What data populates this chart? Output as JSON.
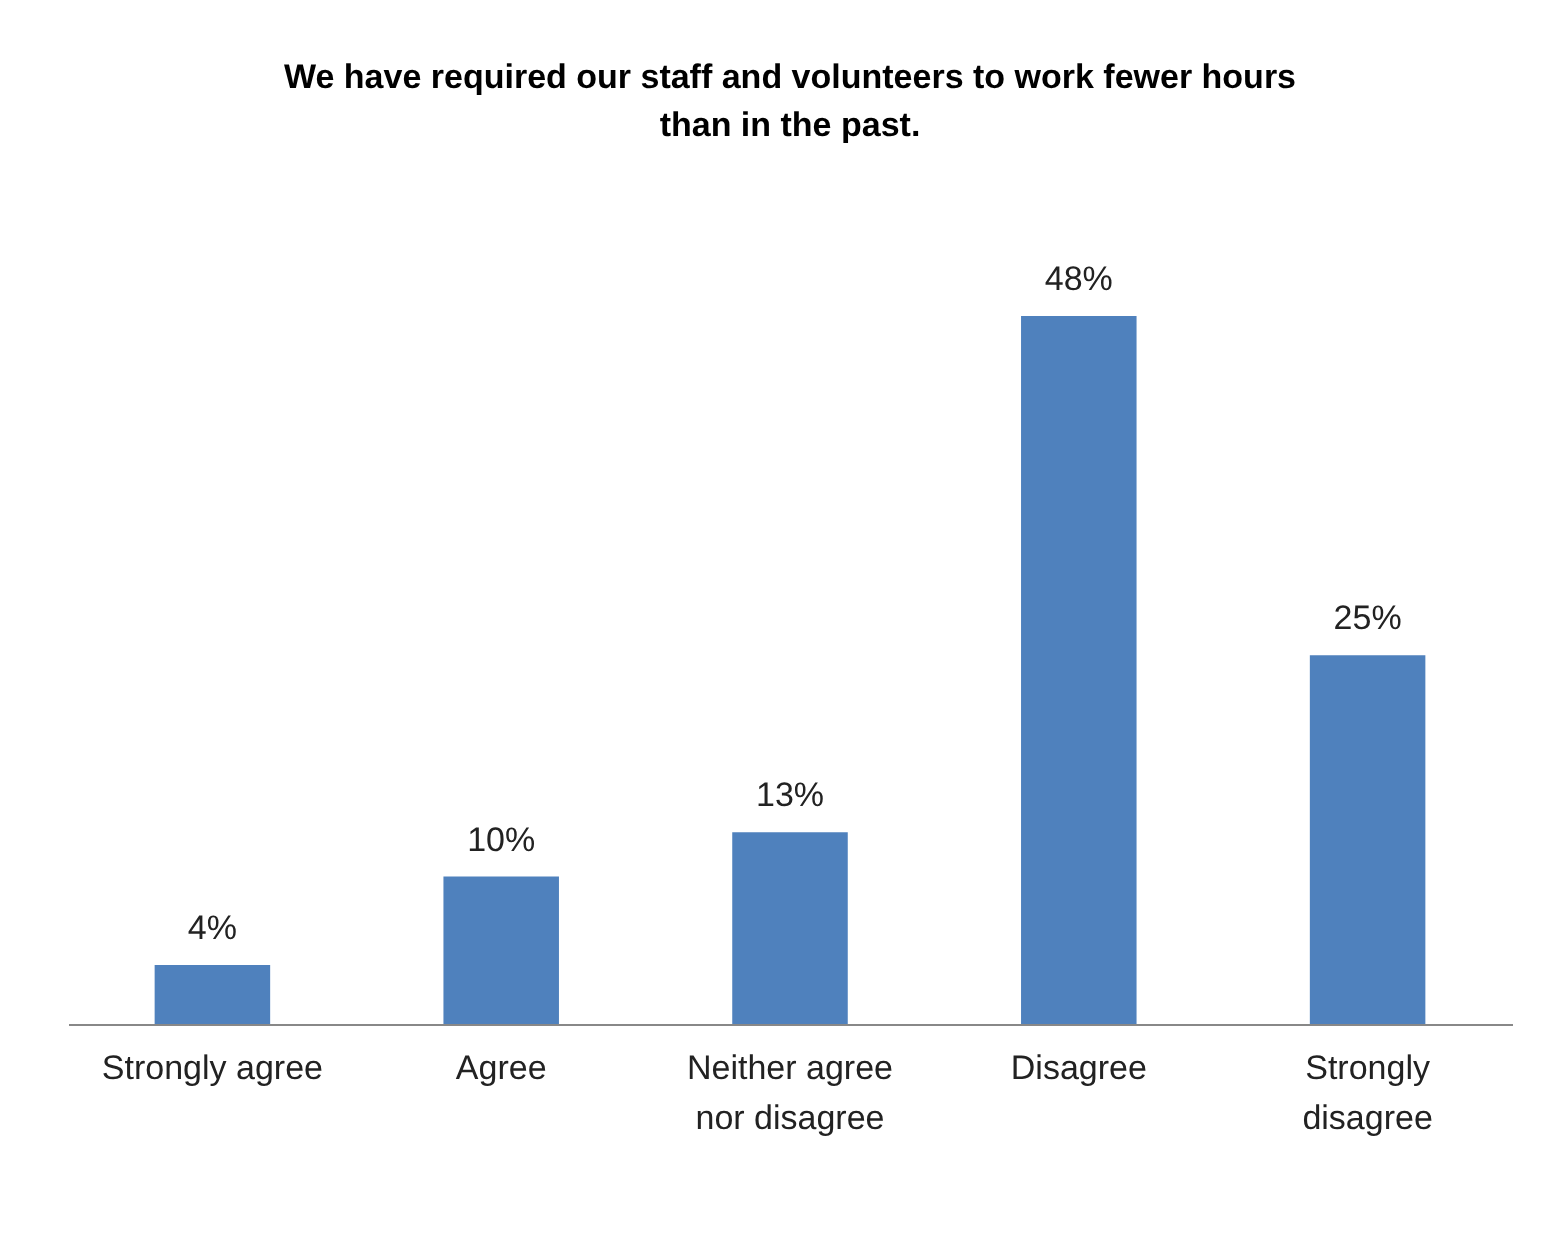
{
  "chart_data": {
    "type": "bar",
    "title": "We have required our staff and volunteers to work fewer hours than in the past.",
    "categories": [
      "Strongly agree",
      "Agree",
      "Neither agree nor disagree",
      "Disagree",
      "Strongly disagree"
    ],
    "values": [
      4,
      10,
      13,
      48,
      25
    ],
    "value_labels": [
      "4%",
      "10%",
      "13%",
      "48%",
      "25%"
    ],
    "color": "#4f81bd"
  }
}
